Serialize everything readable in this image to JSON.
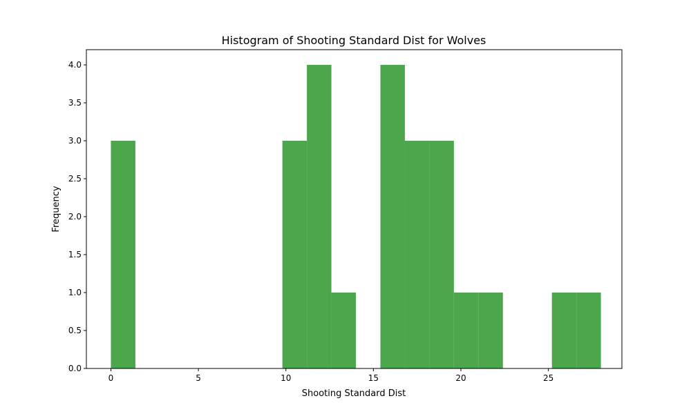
{
  "chart_data": {
    "type": "bar",
    "title": "Histogram of Shooting Standard Dist for Wolves",
    "xlabel": "Shooting Standard Dist",
    "ylabel": "Frequency",
    "xlim": [
      -1.4,
      29.2
    ],
    "ylim": [
      0,
      4.2
    ],
    "bar_color": "#4ca64c",
    "bins": [
      {
        "x0": 0.0,
        "x1": 1.4,
        "count": 3
      },
      {
        "x0": 9.8,
        "x1": 11.2,
        "count": 3
      },
      {
        "x0": 11.2,
        "x1": 12.6,
        "count": 4
      },
      {
        "x0": 12.6,
        "x1": 14.0,
        "count": 1
      },
      {
        "x0": 15.4,
        "x1": 16.8,
        "count": 4
      },
      {
        "x0": 16.8,
        "x1": 18.2,
        "count": 3
      },
      {
        "x0": 18.2,
        "x1": 19.6,
        "count": 3
      },
      {
        "x0": 19.6,
        "x1": 21.0,
        "count": 1
      },
      {
        "x0": 21.0,
        "x1": 22.4,
        "count": 1
      },
      {
        "x0": 25.2,
        "x1": 26.6,
        "count": 1
      },
      {
        "x0": 26.6,
        "x1": 28.0,
        "count": 1
      }
    ],
    "x_ticks": [
      0,
      5,
      10,
      15,
      20,
      25
    ],
    "x_tick_labels": [
      "0",
      "5",
      "10",
      "15",
      "20",
      "25"
    ],
    "y_ticks": [
      0,
      0.5,
      1.0,
      1.5,
      2.0,
      2.5,
      3.0,
      3.5,
      4.0
    ],
    "y_tick_labels": [
      "0.0",
      "0.5",
      "1.0",
      "1.5",
      "2.0",
      "2.5",
      "3.0",
      "3.5",
      "4.0"
    ],
    "grid": false
  }
}
